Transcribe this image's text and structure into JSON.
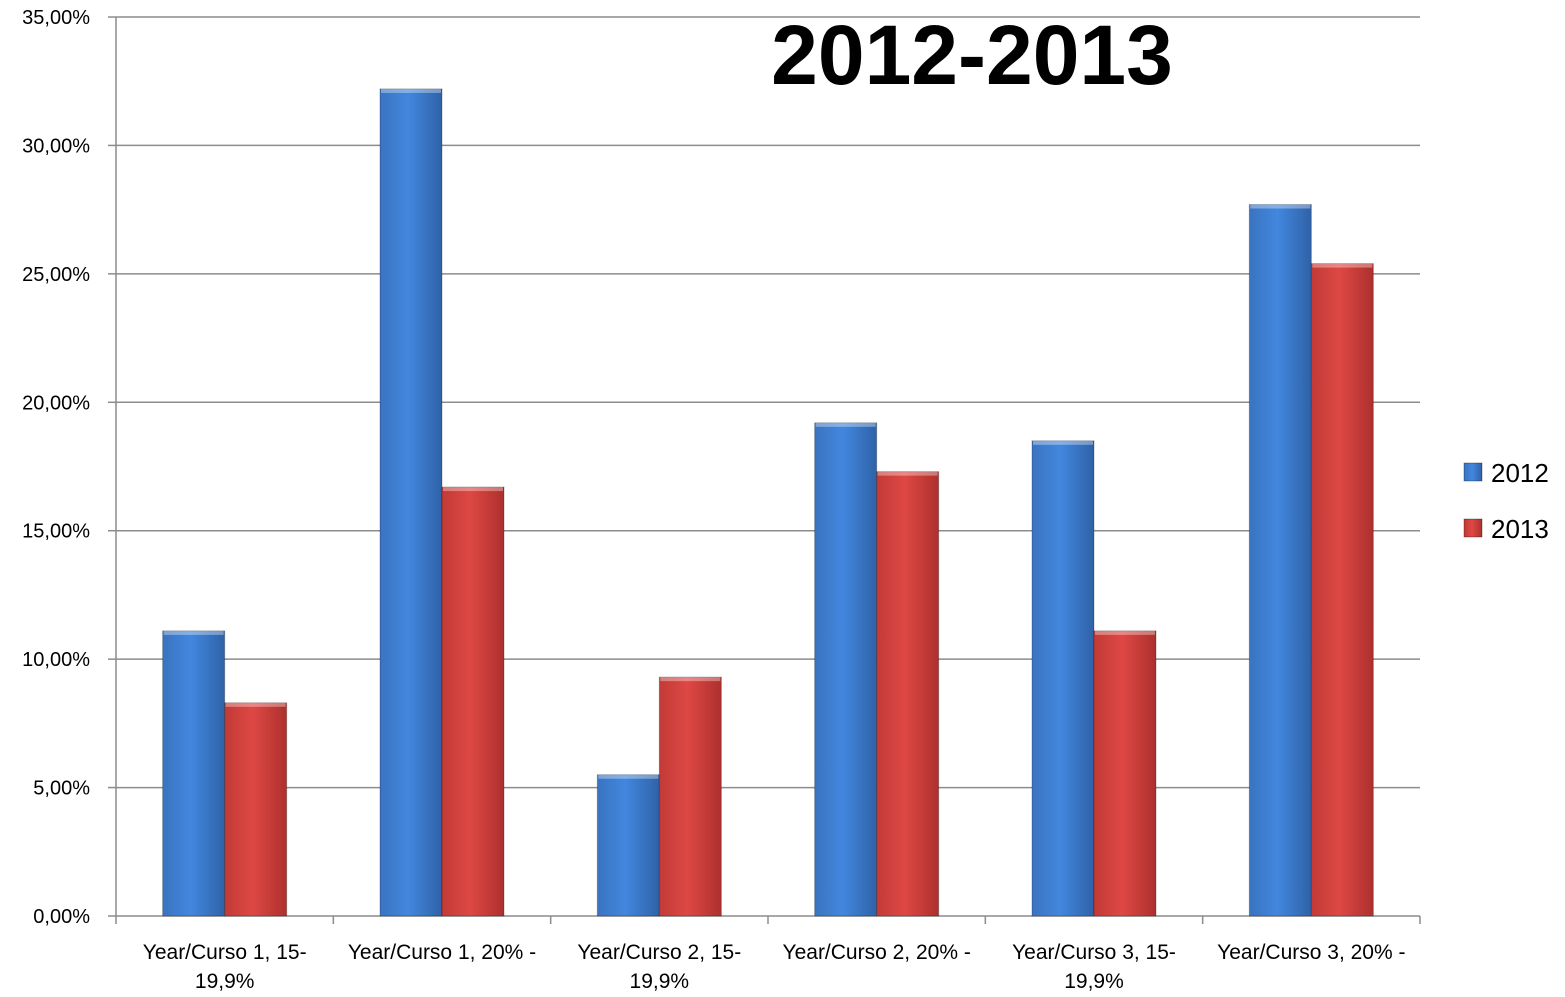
{
  "chart_data": {
    "type": "bar",
    "title": "2012-2013",
    "xlabel": "",
    "ylabel": "",
    "ylim": [
      0,
      35
    ],
    "y_ticks": [
      "0,00%",
      "5,00%",
      "10,00%",
      "15,00%",
      "20,00%",
      "25,00%",
      "30,00%",
      "35,00%"
    ],
    "grid": true,
    "legend_position": "right",
    "categories": [
      [
        "Year/Curso 1, 15-",
        "19,9%"
      ],
      [
        "Year/Curso 1, 20% -"
      ],
      [
        "Year/Curso 2, 15-",
        "19,9%"
      ],
      [
        "Year/Curso 2, 20% -"
      ],
      [
        "Year/Curso 3, 15-",
        "19,9%"
      ],
      [
        "Year/Curso 3, 20% -"
      ]
    ],
    "series": [
      {
        "name": "2012",
        "color": "#3d7bd0",
        "values": [
          11.1,
          32.2,
          5.5,
          19.2,
          18.5,
          27.7
        ]
      },
      {
        "name": "2013",
        "color": "#d13f3b",
        "values": [
          8.3,
          16.7,
          9.3,
          17.3,
          11.1,
          25.4
        ]
      }
    ]
  }
}
